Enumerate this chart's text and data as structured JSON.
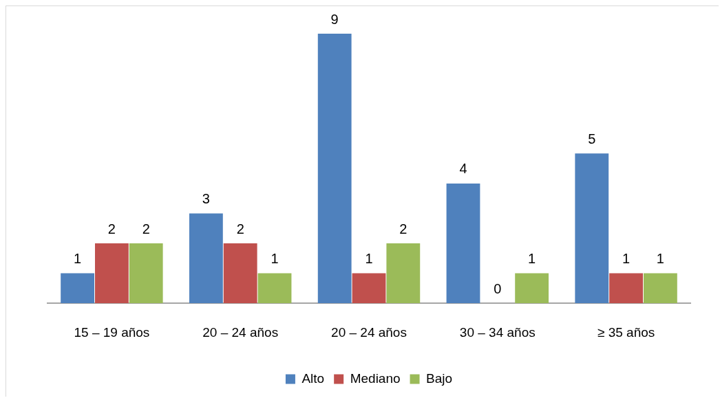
{
  "chart_data": {
    "type": "bar",
    "categories": [
      "15 – 19 años",
      "20 – 24 años",
      "20 – 24 años",
      "30 – 34 años",
      "≥ 35 años"
    ],
    "series": [
      {
        "name": "Alto",
        "color": "#4f81bd",
        "values": [
          1,
          3,
          9,
          4,
          5
        ]
      },
      {
        "name": "Mediano",
        "color": "#c0504d",
        "values": [
          2,
          2,
          1,
          0,
          1
        ]
      },
      {
        "name": "Bajo",
        "color": "#9bbb59",
        "values": [
          2,
          1,
          2,
          1,
          1
        ]
      }
    ],
    "data_labels": true,
    "legend": "bottom",
    "grid": false
  }
}
